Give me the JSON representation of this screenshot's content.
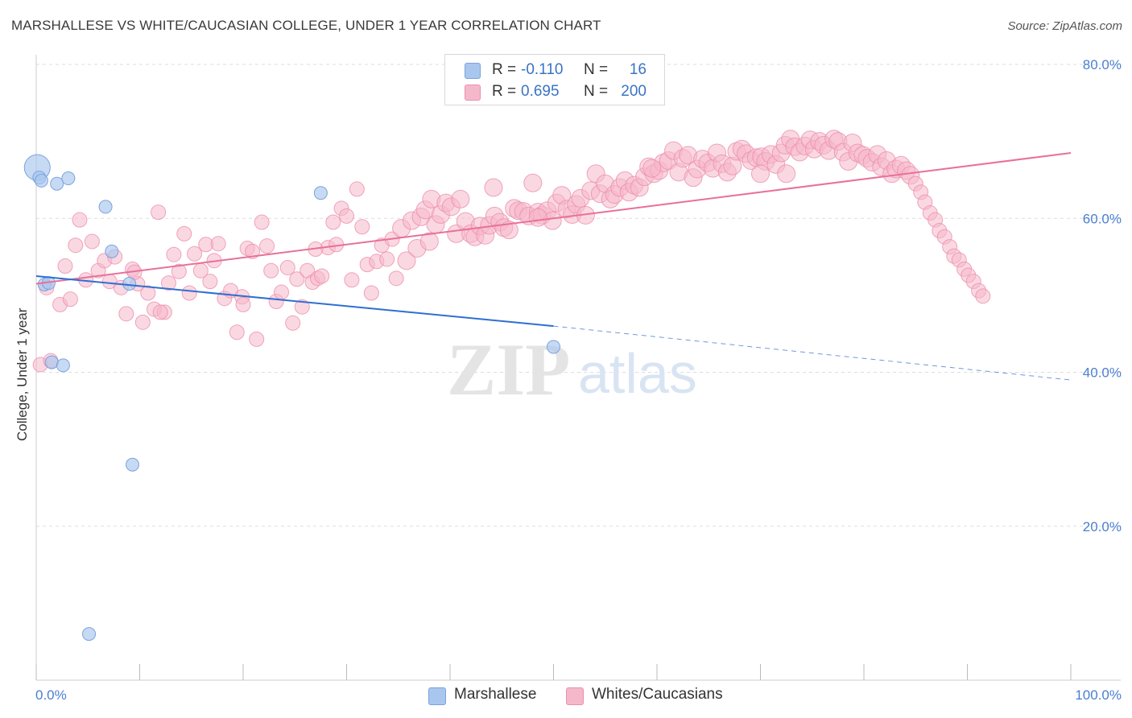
{
  "header": {
    "title": "MARSHALLESE VS WHITE/CAUCASIAN COLLEGE, UNDER 1 YEAR CORRELATION CHART",
    "source": "Source: ZipAtlas.com"
  },
  "legend": {
    "rows": [
      {
        "r_label": "R =",
        "r_value": "-0.110",
        "n_label": "N =",
        "n_value": "16"
      },
      {
        "r_label": "R =",
        "r_value": "0.695",
        "n_label": "N =",
        "n_value": "200"
      }
    ]
  },
  "bottom_legend": {
    "items": [
      {
        "label": "Marshallese"
      },
      {
        "label": "Whites/Caucasians"
      }
    ]
  },
  "watermark": {
    "zip": "ZIP",
    "atlas": "atlas"
  },
  "colors": {
    "blue_fill": "#a9c6ee",
    "blue_stroke": "#7aa3dc",
    "blue_line": "#2f6fd0",
    "pink_fill": "#f5b8cb",
    "pink_stroke": "#ec8fae",
    "pink_line": "#e8709a",
    "grid": "#dddddd",
    "tick_text": "#4a7fd0"
  },
  "chart_data": {
    "type": "scatter",
    "title": "MARSHALLESE VS WHITE/CAUCASIAN COLLEGE, UNDER 1 YEAR CORRELATION CHART",
    "xlabel": "",
    "ylabel": "College, Under 1 year",
    "xlim": [
      0,
      100
    ],
    "ylim": [
      0,
      80
    ],
    "x_tick_labels": [
      "0.0%",
      "100.0%"
    ],
    "y_tick_labels": [
      "20.0%",
      "40.0%",
      "60.0%",
      "80.0%"
    ],
    "y_tick_values": [
      20,
      40,
      60,
      80
    ],
    "grid": true,
    "legend_position": "top-center",
    "series": [
      {
        "name": "Marshallese",
        "r": -0.11,
        "n": 16,
        "trend": {
          "x0": 0,
          "y0": 52.5,
          "x1": 50,
          "y1": 46.0,
          "dash_to_x": 100,
          "dash_to_y": 39.0
        },
        "points": [
          [
            0.1,
            66.6
          ],
          [
            0.3,
            65.3
          ],
          [
            0.5,
            64.9
          ],
          [
            2.0,
            64.5
          ],
          [
            3.1,
            65.2
          ],
          [
            6.7,
            61.5
          ],
          [
            7.3,
            55.7
          ],
          [
            27.5,
            63.3
          ],
          [
            0.8,
            51.4
          ],
          [
            1.2,
            51.6
          ],
          [
            9.0,
            51.5
          ],
          [
            1.5,
            41.3
          ],
          [
            2.6,
            40.9
          ],
          [
            9.3,
            28.0
          ],
          [
            50.0,
            43.3
          ],
          [
            5.1,
            6.0
          ]
        ]
      },
      {
        "name": "Whites/Caucasians",
        "r": 0.695,
        "n": 200,
        "trend": {
          "x0": 0,
          "y0": 51.5,
          "x1": 100,
          "y1": 68.5
        },
        "points": [
          [
            0.4,
            41.0
          ],
          [
            1.0,
            51.0
          ],
          [
            1.4,
            41.5
          ],
          [
            2.3,
            48.8
          ],
          [
            2.8,
            53.8
          ],
          [
            3.3,
            49.5
          ],
          [
            3.8,
            56.5
          ],
          [
            4.2,
            59.8
          ],
          [
            4.8,
            52.0
          ],
          [
            5.4,
            57.0
          ],
          [
            6.0,
            53.2
          ],
          [
            6.6,
            54.5
          ],
          [
            7.1,
            51.8
          ],
          [
            7.6,
            55.0
          ],
          [
            8.2,
            51.0
          ],
          [
            8.7,
            47.6
          ],
          [
            9.3,
            53.4
          ],
          [
            9.8,
            51.5
          ],
          [
            10.3,
            46.5
          ],
          [
            10.8,
            50.3
          ],
          [
            11.4,
            48.2
          ],
          [
            11.8,
            60.8
          ],
          [
            12.4,
            47.8
          ],
          [
            12.8,
            51.6
          ],
          [
            13.3,
            55.3
          ],
          [
            13.8,
            53.1
          ],
          [
            14.3,
            58.0
          ],
          [
            14.8,
            50.3
          ],
          [
            15.3,
            55.4
          ],
          [
            15.9,
            53.2
          ],
          [
            16.4,
            56.6
          ],
          [
            16.8,
            51.8
          ],
          [
            17.2,
            54.5
          ],
          [
            17.6,
            56.7
          ],
          [
            18.2,
            49.6
          ],
          [
            18.8,
            50.6
          ],
          [
            19.4,
            45.2
          ],
          [
            19.9,
            49.8
          ],
          [
            20.4,
            56.1
          ],
          [
            20.9,
            55.7
          ],
          [
            21.3,
            44.3
          ],
          [
            21.8,
            59.5
          ],
          [
            22.3,
            56.4
          ],
          [
            22.7,
            53.2
          ],
          [
            23.2,
            49.2
          ],
          [
            23.7,
            50.4
          ],
          [
            24.3,
            53.6
          ],
          [
            24.8,
            46.4
          ],
          [
            25.2,
            52.1
          ],
          [
            25.7,
            48.5
          ],
          [
            26.2,
            53.2
          ],
          [
            26.7,
            51.7
          ],
          [
            27.2,
            52.2
          ],
          [
            27.6,
            52.5
          ],
          [
            28.2,
            56.2
          ],
          [
            28.7,
            59.5
          ],
          [
            29.0,
            56.6
          ],
          [
            29.5,
            61.3
          ],
          [
            30.0,
            60.3
          ],
          [
            30.5,
            52.0
          ],
          [
            31.0,
            63.8
          ],
          [
            31.5,
            58.9
          ],
          [
            32.0,
            54.0
          ],
          [
            32.4,
            50.3
          ],
          [
            32.9,
            54.4
          ],
          [
            33.4,
            56.5
          ],
          [
            33.9,
            54.7
          ],
          [
            34.4,
            57.3
          ],
          [
            34.8,
            52.2
          ],
          [
            35.3,
            58.7
          ],
          [
            35.8,
            54.5
          ],
          [
            36.3,
            59.7
          ],
          [
            36.8,
            56.1
          ],
          [
            37.2,
            60.2
          ],
          [
            37.6,
            61.1
          ],
          [
            38.2,
            62.5
          ],
          [
            38.6,
            59.2
          ],
          [
            39.1,
            60.5
          ],
          [
            39.6,
            62.0
          ],
          [
            40.1,
            61.5
          ],
          [
            40.6,
            58.0
          ],
          [
            41.0,
            62.5
          ],
          [
            41.5,
            59.6
          ],
          [
            42.0,
            58.0
          ],
          [
            42.4,
            57.6
          ],
          [
            42.9,
            59.0
          ],
          [
            43.4,
            57.8
          ],
          [
            43.8,
            59.1
          ],
          [
            44.3,
            60.3
          ],
          [
            44.8,
            59.5
          ],
          [
            45.2,
            58.8
          ],
          [
            45.7,
            58.5
          ],
          [
            46.2,
            61.3
          ],
          [
            46.6,
            61.0
          ],
          [
            47.1,
            60.9
          ],
          [
            47.6,
            60.3
          ],
          [
            48.0,
            64.6
          ],
          [
            48.5,
            60.8
          ],
          [
            48.9,
            60.4
          ],
          [
            49.4,
            61.0
          ],
          [
            49.9,
            59.7
          ],
          [
            50.3,
            62.0
          ],
          [
            50.8,
            63.0
          ],
          [
            51.3,
            61.2
          ],
          [
            51.8,
            60.5
          ],
          [
            52.2,
            61.8
          ],
          [
            52.6,
            62.6
          ],
          [
            53.1,
            60.4
          ],
          [
            53.6,
            63.6
          ],
          [
            54.1,
            65.8
          ],
          [
            54.5,
            63.2
          ],
          [
            55.0,
            64.5
          ],
          [
            55.5,
            62.5
          ],
          [
            55.9,
            63.1
          ],
          [
            56.4,
            64.0
          ],
          [
            56.9,
            64.9
          ],
          [
            57.3,
            63.4
          ],
          [
            57.8,
            64.3
          ],
          [
            58.3,
            64.0
          ],
          [
            58.8,
            65.4
          ],
          [
            59.2,
            66.7
          ],
          [
            59.7,
            65.8
          ],
          [
            60.2,
            66.2
          ],
          [
            60.6,
            67.2
          ],
          [
            61.1,
            67.5
          ],
          [
            61.6,
            68.8
          ],
          [
            62.1,
            66.0
          ],
          [
            62.5,
            67.8
          ],
          [
            63.0,
            68.2
          ],
          [
            63.5,
            65.3
          ],
          [
            63.9,
            66.4
          ],
          [
            64.4,
            67.7
          ],
          [
            64.9,
            67.2
          ],
          [
            65.4,
            66.5
          ],
          [
            65.8,
            68.5
          ],
          [
            66.3,
            67.1
          ],
          [
            66.8,
            66.0
          ],
          [
            67.3,
            66.8
          ],
          [
            67.7,
            68.7
          ],
          [
            68.2,
            69.0
          ],
          [
            68.6,
            68.4
          ],
          [
            69.1,
            67.5
          ],
          [
            69.6,
            67.9
          ],
          [
            70.1,
            68.0
          ],
          [
            70.5,
            67.4
          ],
          [
            71.0,
            68.3
          ],
          [
            71.5,
            67.0
          ],
          [
            72.0,
            68.5
          ],
          [
            72.4,
            69.5
          ],
          [
            72.9,
            70.3
          ],
          [
            73.3,
            69.3
          ],
          [
            73.8,
            68.6
          ],
          [
            74.3,
            69.4
          ],
          [
            74.8,
            70.2
          ],
          [
            75.2,
            69.0
          ],
          [
            75.7,
            70.0
          ],
          [
            76.1,
            69.5
          ],
          [
            76.6,
            68.8
          ],
          [
            77.1,
            70.3
          ],
          [
            77.5,
            70.0
          ],
          [
            78.0,
            68.6
          ],
          [
            78.5,
            67.4
          ],
          [
            78.9,
            69.8
          ],
          [
            79.4,
            68.5
          ],
          [
            79.9,
            68.2
          ],
          [
            80.3,
            67.8
          ],
          [
            80.8,
            67.3
          ],
          [
            81.3,
            68.3
          ],
          [
            81.7,
            66.7
          ],
          [
            82.2,
            67.5
          ],
          [
            82.7,
            65.8
          ],
          [
            83.1,
            66.4
          ],
          [
            83.6,
            66.9
          ],
          [
            84.1,
            66.2
          ],
          [
            84.5,
            65.6
          ],
          [
            85.0,
            64.5
          ],
          [
            85.5,
            63.4
          ],
          [
            85.9,
            62.1
          ],
          [
            86.4,
            60.7
          ],
          [
            86.9,
            59.8
          ],
          [
            87.3,
            58.4
          ],
          [
            87.8,
            57.6
          ],
          [
            88.3,
            56.3
          ],
          [
            88.7,
            55.1
          ],
          [
            89.2,
            54.6
          ],
          [
            89.7,
            53.4
          ],
          [
            90.1,
            52.6
          ],
          [
            90.6,
            51.8
          ],
          [
            91.1,
            50.6
          ],
          [
            91.5,
            49.9
          ],
          [
            70.0,
            65.8
          ],
          [
            72.5,
            65.8
          ],
          [
            59.5,
            66.5
          ],
          [
            48.5,
            60.1
          ],
          [
            44.2,
            64.0
          ],
          [
            38.0,
            57.0
          ],
          [
            27.0,
            56.0
          ],
          [
            12.0,
            47.8
          ],
          [
            20.0,
            48.8
          ],
          [
            9.5,
            53.0
          ]
        ]
      }
    ]
  }
}
